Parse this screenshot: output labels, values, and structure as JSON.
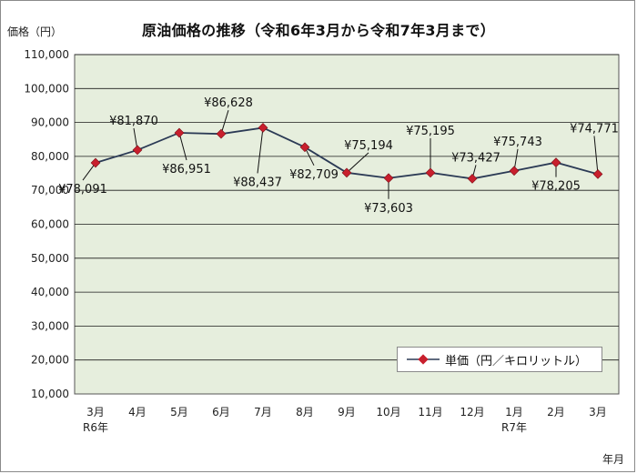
{
  "chart_data": {
    "type": "line",
    "title": "原油価格の推移（令和6年3月から令和7年3月まで）",
    "ylabel": "価格（円）",
    "xlabel": "年月",
    "categories": [
      "3月",
      "4月",
      "5月",
      "6月",
      "7月",
      "8月",
      "9月",
      "10月",
      "11月",
      "12月",
      "1月",
      "2月",
      "3月"
    ],
    "year_labels": [
      "R6年",
      "",
      "",
      "",
      "",
      "",
      "",
      "",
      "",
      "",
      "R7年",
      "",
      ""
    ],
    "series": [
      {
        "name": "単価（円／キロリットル）",
        "values": [
          78091,
          81870,
          86951,
          86628,
          88437,
          82709,
          75194,
          73603,
          75195,
          73427,
          75743,
          78205,
          74771
        ],
        "labels": [
          "¥78,091",
          "¥81,870",
          "¥86,951",
          "¥86,628",
          "¥88,437",
          "¥82,709",
          "¥75,194",
          "¥73,603",
          "¥75,195",
          "¥73,427",
          "¥75,743",
          "¥78,205",
          "¥74,771"
        ]
      }
    ],
    "ylim": [
      10000,
      110000
    ],
    "yticks": [
      "10,000",
      "20,000",
      "30,000",
      "40,000",
      "50,000",
      "60,000",
      "70,000",
      "80,000",
      "90,000",
      "100,000",
      "110,000"
    ],
    "grid": true,
    "legend_position": "bottom-right",
    "colors": {
      "plot_background": "#e6eedd",
      "line": "#2b3a55",
      "marker": "#c81f2d",
      "gridline": "#1a1a1a"
    }
  }
}
